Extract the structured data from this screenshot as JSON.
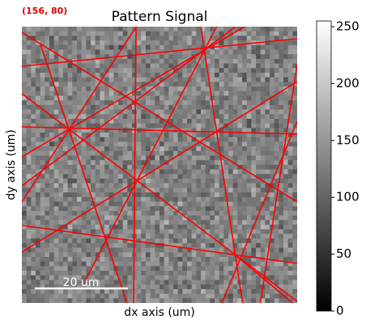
{
  "chart_data": {
    "type": "heatmap",
    "title": "Pattern Signal",
    "annotation": "(156, 80)",
    "x_label": "dx axis (um)",
    "y_label": "dy axis (um)",
    "scalebar": "20 um",
    "colormap": "gray",
    "clim": [
      0,
      255
    ],
    "cticks": [
      0,
      50,
      100,
      150,
      200,
      250
    ]
  }
}
